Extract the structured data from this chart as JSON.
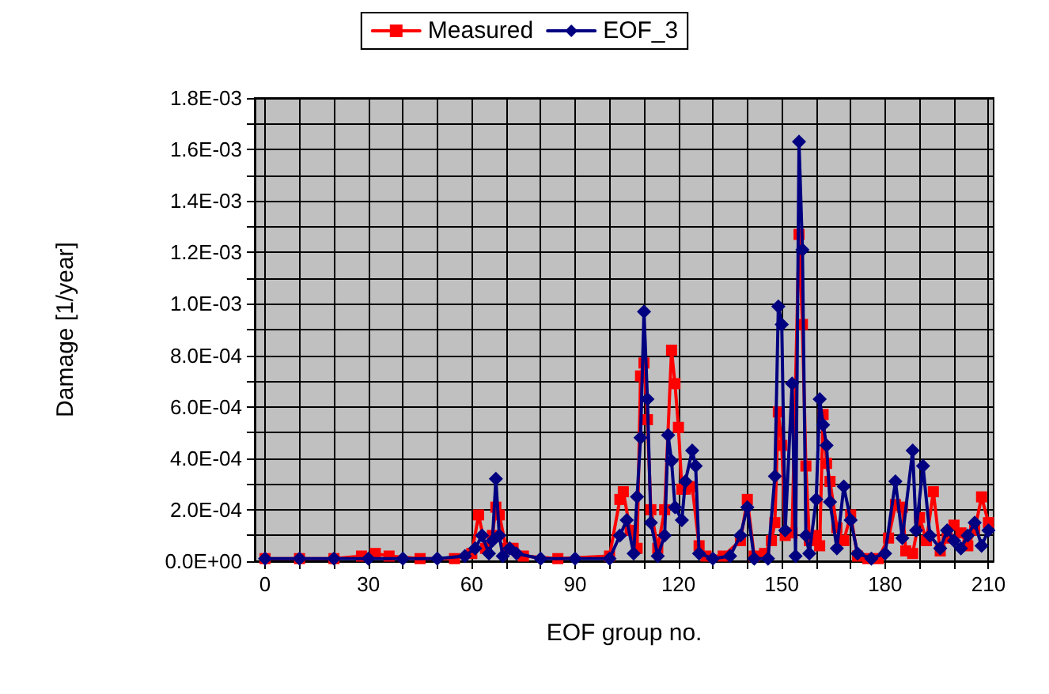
{
  "chart_data": {
    "type": "line",
    "xlabel": "EOF group no.",
    "ylabel": "Damage [1/year]",
    "legend": "top",
    "grid": true,
    "line_style": "solid",
    "xlim": [
      -3,
      211.5
    ],
    "xticks": [
      0,
      {
        "value": 10,
        "label": null
      },
      {
        "value": 20,
        "label": null
      },
      30,
      {
        "value": 40,
        "label": null
      },
      {
        "value": 50,
        "label": null
      },
      60,
      {
        "value": 70,
        "label": null
      },
      {
        "value": 80,
        "label": null
      },
      90,
      {
        "value": 100,
        "label": null
      },
      {
        "value": 110,
        "label": null
      },
      120,
      {
        "value": 130,
        "label": null
      },
      {
        "value": 140,
        "label": null
      },
      150,
      {
        "value": 160,
        "label": null
      },
      {
        "value": 170,
        "label": null
      },
      180,
      {
        "value": 190,
        "label": null
      },
      {
        "value": 200,
        "label": null
      },
      210
    ],
    "ylim": [
      0,
      0.0018
    ],
    "yticks": [
      {
        "value": 0,
        "label": "0.0E+00"
      },
      {
        "value": 0.0001,
        "label": null
      },
      {
        "value": 0.0002,
        "label": "2.0E-04"
      },
      {
        "value": 0.0003,
        "label": null
      },
      {
        "value": 0.0004,
        "label": "4.0E-04"
      },
      {
        "value": 0.0005,
        "label": null
      },
      {
        "value": 0.0006,
        "label": "6.0E-04"
      },
      {
        "value": 0.0007,
        "label": null
      },
      {
        "value": 0.0008,
        "label": "8.0E-04"
      },
      {
        "value": 0.0009,
        "label": null
      },
      {
        "value": 0.001,
        "label": "1.0E-03"
      },
      {
        "value": 0.0011,
        "label": null
      },
      {
        "value": 0.0012,
        "label": "1.2E-03"
      },
      {
        "value": 0.0013,
        "label": null
      },
      {
        "value": 0.0014,
        "label": "1.4E-03"
      },
      {
        "value": 0.0015,
        "label": null
      },
      {
        "value": 0.0016,
        "label": "1.6E-03"
      },
      {
        "value": 0.0017,
        "label": null
      },
      {
        "value": 0.0018,
        "label": "1.8E-03"
      }
    ],
    "series": [
      {
        "name": "Measured",
        "color": "#ff0000",
        "marker": "square",
        "x": [
          0,
          10,
          20,
          28,
          32,
          36,
          45,
          55,
          60,
          62,
          64,
          66,
          67,
          68,
          70,
          72,
          75,
          85,
          100,
          103,
          104,
          106,
          108,
          109,
          110,
          111,
          112,
          114,
          116,
          118,
          119,
          120,
          121,
          122,
          124,
          126,
          128,
          133,
          138,
          140,
          142,
          145,
          147,
          148,
          149,
          150,
          151,
          153,
          155,
          156,
          157,
          158,
          160,
          161,
          162,
          163,
          164,
          166,
          168,
          170,
          172,
          175,
          178,
          181,
          183,
          185,
          186,
          188,
          190,
          192,
          194,
          196,
          198,
          200,
          202,
          204,
          206,
          208,
          210
        ],
        "values": [
          1e-05,
          1e-05,
          1e-05,
          2e-05,
          3e-05,
          2e-05,
          1e-05,
          1e-05,
          3e-05,
          0.00018,
          5e-05,
          0.0001,
          0.00021,
          0.00018,
          5e-05,
          5e-05,
          2e-05,
          1e-05,
          2e-05,
          0.00024,
          0.00027,
          0.00012,
          5e-05,
          0.00072,
          0.00077,
          0.00055,
          0.0002,
          5e-05,
          0.0002,
          0.00082,
          0.00069,
          0.00052,
          0.00028,
          0.00028,
          0.00029,
          6e-05,
          2e-05,
          2e-05,
          8e-05,
          0.00024,
          2e-05,
          3e-05,
          8e-05,
          0.00015,
          0.00058,
          0.00045,
          0.0001,
          0.00011,
          0.00127,
          0.00092,
          0.00037,
          8e-05,
          0.0001,
          6e-05,
          0.00057,
          0.00038,
          0.00031,
          0.00013,
          8e-05,
          0.00018,
          2e-05,
          1e-05,
          1e-05,
          9e-05,
          0.00022,
          0.00021,
          4e-05,
          3e-05,
          0.00017,
          8e-05,
          0.00027,
          4e-05,
          9e-05,
          0.00014,
          0.00011,
          6e-05,
          0.00012,
          0.00025,
          0.00015
        ]
      },
      {
        "name": "EOF_3",
        "color": "#000080",
        "marker": "diamond",
        "x": [
          0,
          10,
          20,
          30,
          40,
          50,
          58,
          61,
          63,
          65,
          66,
          67,
          68,
          69,
          71,
          73,
          80,
          90,
          100,
          103,
          105,
          107,
          108,
          109,
          110,
          111,
          112,
          114,
          116,
          117,
          118,
          119,
          121,
          122,
          124,
          125,
          126,
          130,
          135,
          138,
          140,
          142,
          146,
          148,
          149,
          150,
          151,
          153,
          154,
          155,
          156,
          157,
          158,
          160,
          161,
          162,
          163,
          164,
          166,
          168,
          170,
          172,
          176,
          180,
          183,
          185,
          188,
          189,
          191,
          193,
          196,
          198,
          200,
          202,
          204,
          206,
          208,
          210
        ],
        "values": [
          1e-05,
          1e-05,
          1e-05,
          1e-05,
          1e-05,
          1e-05,
          2e-05,
          5e-05,
          0.0001,
          3e-05,
          8e-05,
          0.00032,
          0.0001,
          2e-05,
          5e-05,
          3e-05,
          1e-05,
          1e-05,
          1e-05,
          0.0001,
          0.00016,
          3e-05,
          0.00025,
          0.00048,
          0.00097,
          0.00063,
          0.00015,
          2e-05,
          0.0001,
          0.00049,
          0.00039,
          0.00021,
          0.00016,
          0.00031,
          0.00043,
          0.00037,
          3e-05,
          1e-05,
          2e-05,
          0.0001,
          0.00021,
          1e-05,
          1e-05,
          0.00033,
          0.00099,
          0.00092,
          0.00012,
          0.00069,
          2e-05,
          0.00163,
          0.00121,
          0.0001,
          3e-05,
          0.00024,
          0.00063,
          0.00053,
          0.00045,
          0.00023,
          5e-05,
          0.00029,
          0.00016,
          3e-05,
          1e-05,
          3e-05,
          0.00031,
          9e-05,
          0.00043,
          0.00012,
          0.00037,
          0.0001,
          5e-05,
          0.00012,
          8e-05,
          5e-05,
          0.0001,
          0.00015,
          6e-05,
          0.00012
        ]
      }
    ]
  }
}
